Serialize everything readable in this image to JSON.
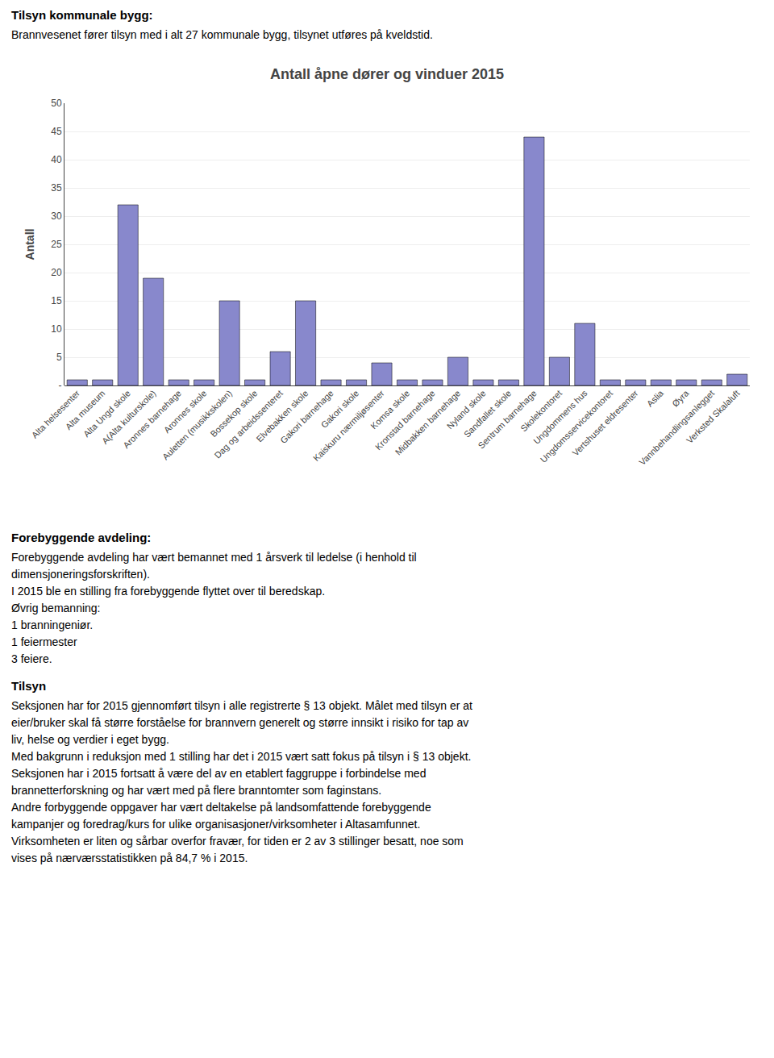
{
  "chart_data": {
    "type": "bar",
    "title": "Antall åpne dører og vinduer 2015",
    "ylabel": "Antall",
    "categories": [
      "Alta helsesenter",
      "Alta museum",
      "Alta Ungd skole",
      "A(Alta kulturskole)",
      "Aronnes barnehage",
      "Aronnes skole",
      "Auletten (musikkskolen)",
      "Bossekop skole",
      "Dag og arbeidssenteret",
      "Elvebakken skole",
      "Gakori barnehage",
      "Gakori skole",
      "Kaiskuru nærmiljøsenter",
      "Komsa skole",
      "Kronstad barnehage",
      "Midbakken barnehage",
      "Nyland skole",
      "Sandfallet skole",
      "Sentrum barnehage",
      "Skolekontoret",
      "Ungdommens hus",
      "Ungdomsservicekontoret",
      "Vertshuset eldresenter",
      "Aslia",
      "Øyra",
      "Vannbehandlingsanlegget",
      "Verksted Skalaluft"
    ],
    "values": [
      1,
      1,
      32,
      19,
      1,
      1,
      15,
      1,
      6,
      15,
      1,
      1,
      4,
      1,
      1,
      5,
      1,
      1,
      44,
      5,
      11,
      1,
      1,
      1,
      1,
      1,
      2
    ],
    "color": "#8888cc",
    "ylim": [
      0,
      50
    ],
    "yticks": [
      {
        "value": 0,
        "label": "-"
      },
      5,
      10,
      15,
      20,
      25,
      30,
      35,
      40,
      45,
      50
    ],
    "grid": true,
    "annotations": [
      [
        "Tilsyn kommunale bygg:",
        "Brannvesenet fører tilsyn med i alt 27 kommunale bygg, tilsynet utføres på kveldstid."
      ],
      [
        "Forebyggende avdeling:",
        "Forebyggende avdeling har vært bemannet med 1 årsverk til ledelse (i henhold til",
        "dimensjoneringsforskriften).",
        "I 2015 ble en stilling fra forebyggende flyttet over til beredskap.",
        "Øvrig bemanning:",
        "1 branningeniør.",
        "1 feiermester",
        "3 feiere."
      ],
      [
        "Tilsyn",
        "Seksjonen har for 2015 gjennomført tilsyn i alle registrerte § 13 objekt. Målet med tilsyn er at",
        "eier/bruker skal få større forståelse for brannvern generelt og større innsikt i risiko for tap av",
        "liv, helse og verdier i eget bygg.",
        "Med bakgrunn i reduksjon med 1 stilling har det i 2015 vært satt fokus på tilsyn i § 13 objekt.",
        "Seksjonen har i 2015 fortsatt å være del av en etablert faggruppe i forbindelse med",
        "brannetterforskning og har vært med på flere branntomter som faginstans.",
        "Andre forbyggende oppgaver har vært deltakelse på landsomfattende forebyggende",
        "kampanjer og foredrag/kurs for ulike organisasjoner/virksomheter i Altasamfunnet.",
        "Virksomheten er liten og sårbar overfor fravær, for tiden er 2 av 3 stillinger besatt, noe som",
        "vises på nærværsstatistikken på 84,7 % i 2015."
      ]
    ]
  }
}
